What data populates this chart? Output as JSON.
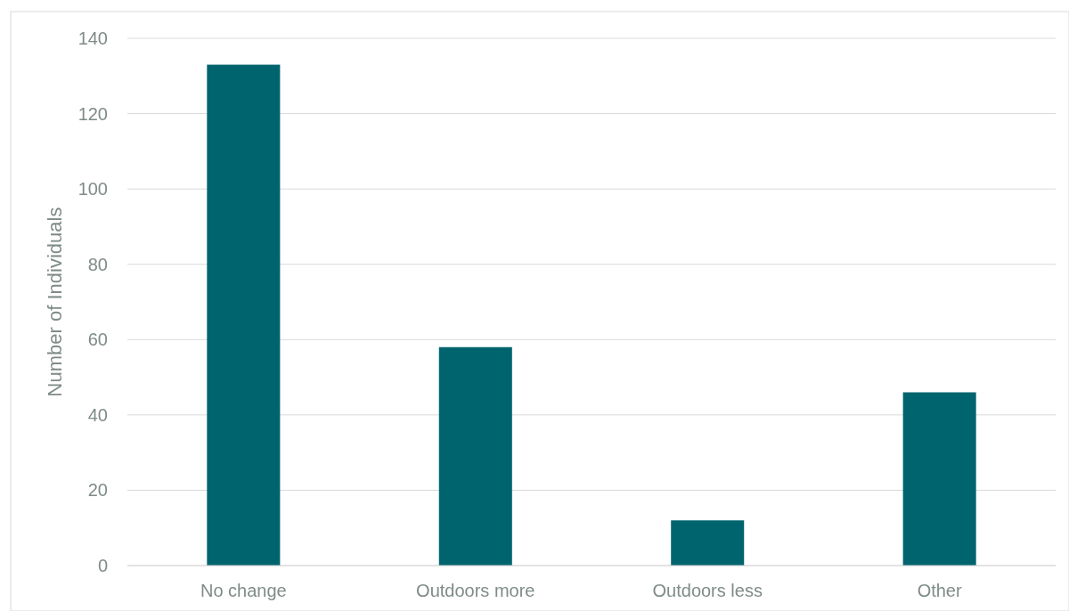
{
  "chart_data": {
    "type": "bar",
    "ylabel": "Number of Individuals",
    "categories": [
      "No change",
      "Outdoors more",
      "Outdoors less",
      "Other"
    ],
    "values": [
      133,
      58,
      12,
      46
    ],
    "color": "#00646f",
    "ylim": [
      0,
      140
    ],
    "yticks": [
      0,
      20,
      40,
      60,
      80,
      100,
      120,
      140
    ],
    "grid": "y"
  }
}
